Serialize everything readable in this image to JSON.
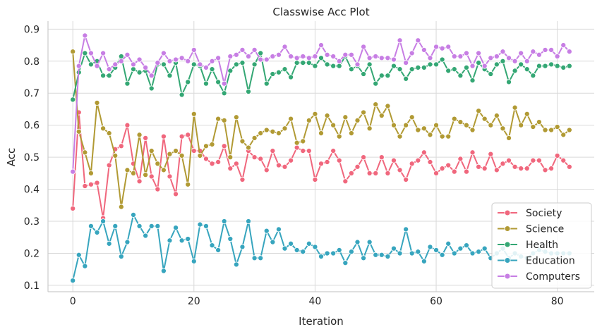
{
  "chart_data": {
    "type": "line",
    "title": "Classwise Acc Plot",
    "xlabel": "Iteration",
    "ylabel": "Acc",
    "xlim": [
      -4.1,
      86.1
    ],
    "ylim": [
      0.08,
      0.925
    ],
    "xticks": [
      "0",
      "20",
      "40",
      "60",
      "80"
    ],
    "yticks": [
      "0.1",
      "0.2",
      "0.3",
      "0.4",
      "0.5",
      "0.6",
      "0.7",
      "0.8",
      "0.9"
    ],
    "grid": true,
    "legend_position": "bottom-right",
    "x_start": 0,
    "series": [
      {
        "name": "Society",
        "color": "#f0677d",
        "values": [
          0.34,
          0.64,
          0.41,
          0.415,
          0.42,
          0.31,
          0.475,
          0.525,
          0.535,
          0.6,
          0.48,
          0.425,
          0.56,
          0.44,
          0.4,
          0.565,
          0.44,
          0.385,
          0.565,
          0.57,
          0.52,
          0.52,
          0.495,
          0.48,
          0.485,
          0.535,
          0.465,
          0.48,
          0.43,
          0.52,
          0.5,
          0.495,
          0.46,
          0.52,
          0.475,
          0.47,
          0.49,
          0.53,
          0.52,
          0.52,
          0.43,
          0.48,
          0.485,
          0.52,
          0.49,
          0.425,
          0.45,
          0.47,
          0.5,
          0.45,
          0.45,
          0.5,
          0.45,
          0.49,
          0.46,
          0.43,
          0.48,
          0.49,
          0.515,
          0.485,
          0.45,
          0.465,
          0.475,
          0.455,
          0.495,
          0.455,
          0.515,
          0.47,
          0.465,
          0.51,
          0.46,
          0.48,
          0.49,
          0.47,
          0.465,
          0.465,
          0.49,
          0.49,
          0.46,
          0.465,
          0.505,
          0.49,
          0.47
        ]
      },
      {
        "name": "Science",
        "color": "#b19a34",
        "values": [
          0.83,
          0.58,
          0.515,
          0.45,
          0.67,
          0.59,
          0.575,
          0.505,
          0.345,
          0.46,
          0.45,
          0.57,
          0.445,
          0.52,
          0.48,
          0.46,
          0.51,
          0.52,
          0.505,
          0.415,
          0.635,
          0.505,
          0.535,
          0.54,
          0.62,
          0.615,
          0.5,
          0.625,
          0.55,
          0.53,
          0.56,
          0.575,
          0.585,
          0.58,
          0.575,
          0.59,
          0.62,
          0.545,
          0.55,
          0.615,
          0.635,
          0.575,
          0.63,
          0.6,
          0.565,
          0.625,
          0.575,
          0.615,
          0.64,
          0.59,
          0.665,
          0.63,
          0.66,
          0.6,
          0.565,
          0.6,
          0.625,
          0.585,
          0.59,
          0.57,
          0.6,
          0.565,
          0.565,
          0.62,
          0.61,
          0.6,
          0.585,
          0.645,
          0.62,
          0.6,
          0.63,
          0.59,
          0.56,
          0.655,
          0.6,
          0.635,
          0.595,
          0.61,
          0.585,
          0.585,
          0.595,
          0.57,
          0.585
        ]
      },
      {
        "name": "Health",
        "color": "#34a774",
        "values": [
          0.68,
          0.765,
          0.825,
          0.79,
          0.8,
          0.755,
          0.755,
          0.78,
          0.815,
          0.73,
          0.775,
          0.765,
          0.77,
          0.715,
          0.79,
          0.79,
          0.755,
          0.795,
          0.695,
          0.735,
          0.79,
          0.785,
          0.73,
          0.775,
          0.735,
          0.7,
          0.77,
          0.79,
          0.795,
          0.705,
          0.79,
          0.825,
          0.73,
          0.76,
          0.765,
          0.775,
          0.75,
          0.795,
          0.795,
          0.795,
          0.785,
          0.81,
          0.79,
          0.785,
          0.785,
          0.815,
          0.775,
          0.785,
          0.76,
          0.79,
          0.73,
          0.755,
          0.755,
          0.785,
          0.775,
          0.745,
          0.775,
          0.78,
          0.78,
          0.79,
          0.79,
          0.805,
          0.77,
          0.775,
          0.755,
          0.78,
          0.74,
          0.795,
          0.775,
          0.76,
          0.79,
          0.8,
          0.735,
          0.77,
          0.79,
          0.775,
          0.755,
          0.785,
          0.785,
          0.79,
          0.785,
          0.78,
          0.785
        ]
      },
      {
        "name": "Education",
        "color": "#37a5be",
        "values": [
          0.115,
          0.195,
          0.16,
          0.285,
          0.265,
          0.3,
          0.23,
          0.285,
          0.19,
          0.235,
          0.32,
          0.285,
          0.255,
          0.285,
          0.285,
          0.145,
          0.24,
          0.28,
          0.24,
          0.245,
          0.175,
          0.29,
          0.285,
          0.225,
          0.21,
          0.3,
          0.245,
          0.165,
          0.22,
          0.3,
          0.185,
          0.185,
          0.27,
          0.235,
          0.275,
          0.215,
          0.23,
          0.21,
          0.205,
          0.23,
          0.22,
          0.19,
          0.2,
          0.2,
          0.21,
          0.17,
          0.205,
          0.235,
          0.185,
          0.235,
          0.195,
          0.195,
          0.19,
          0.215,
          0.2,
          0.275,
          0.2,
          0.205,
          0.175,
          0.22,
          0.21,
          0.195,
          0.23,
          0.2,
          0.215,
          0.225,
          0.2,
          0.205,
          0.215,
          0.185,
          0.2,
          0.215,
          0.185,
          0.2,
          0.19,
          0.185,
          0.2,
          0.21,
          0.205,
          0.2,
          0.2,
          0.2,
          0.2
        ]
      },
      {
        "name": "Computers",
        "color": "#c77ee4",
        "values": [
          0.455,
          0.785,
          0.88,
          0.825,
          0.785,
          0.825,
          0.775,
          0.79,
          0.8,
          0.82,
          0.79,
          0.805,
          0.78,
          0.755,
          0.795,
          0.825,
          0.8,
          0.805,
          0.81,
          0.8,
          0.835,
          0.79,
          0.78,
          0.8,
          0.81,
          0.73,
          0.815,
          0.82,
          0.835,
          0.815,
          0.835,
          0.805,
          0.805,
          0.815,
          0.82,
          0.845,
          0.815,
          0.81,
          0.815,
          0.81,
          0.815,
          0.85,
          0.82,
          0.815,
          0.8,
          0.82,
          0.82,
          0.79,
          0.845,
          0.81,
          0.815,
          0.81,
          0.81,
          0.805,
          0.865,
          0.795,
          0.825,
          0.865,
          0.835,
          0.81,
          0.845,
          0.84,
          0.845,
          0.815,
          0.815,
          0.825,
          0.785,
          0.825,
          0.785,
          0.81,
          0.815,
          0.83,
          0.81,
          0.8,
          0.825,
          0.8,
          0.83,
          0.82,
          0.835,
          0.835,
          0.815,
          0.85,
          0.83
        ]
      }
    ]
  }
}
